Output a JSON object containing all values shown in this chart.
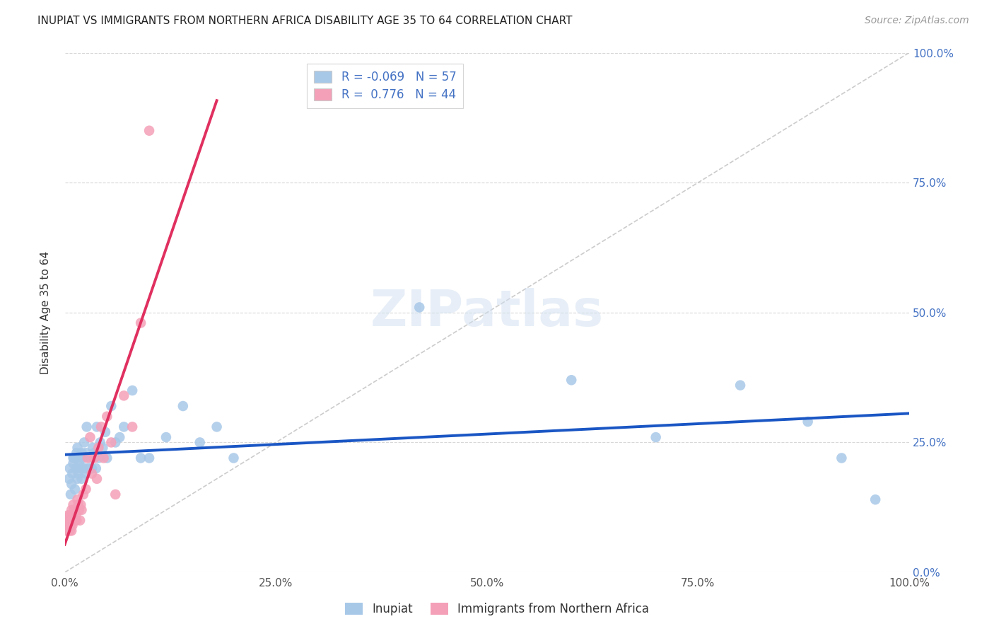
{
  "title": "INUPIAT VS IMMIGRANTS FROM NORTHERN AFRICA DISABILITY AGE 35 TO 64 CORRELATION CHART",
  "source": "Source: ZipAtlas.com",
  "ylabel": "Disability Age 35 to 64",
  "xlim": [
    0,
    1.0
  ],
  "ylim": [
    0,
    1.0
  ],
  "xticks": [
    0.0,
    0.25,
    0.5,
    0.75,
    1.0
  ],
  "yticks": [
    0.0,
    0.25,
    0.5,
    0.75,
    1.0
  ],
  "inupiat_color": "#a8c8e8",
  "immigrant_color": "#f4a0b8",
  "inupiat_R": -0.069,
  "inupiat_N": 57,
  "immigrant_R": 0.776,
  "immigrant_N": 44,
  "trend_blue": "#1a56c4",
  "trend_pink": "#e03060",
  "legend_label_blue": "Inupiat",
  "legend_label_pink": "Immigrants from Northern Africa",
  "inupiat_x": [
    0.005,
    0.006,
    0.007,
    0.008,
    0.009,
    0.01,
    0.01,
    0.011,
    0.012,
    0.013,
    0.014,
    0.015,
    0.015,
    0.016,
    0.017,
    0.018,
    0.019,
    0.02,
    0.02,
    0.021,
    0.022,
    0.023,
    0.024,
    0.025,
    0.025,
    0.026,
    0.028,
    0.03,
    0.032,
    0.033,
    0.035,
    0.037,
    0.038,
    0.04,
    0.042,
    0.045,
    0.048,
    0.05,
    0.055,
    0.06,
    0.065,
    0.07,
    0.08,
    0.09,
    0.1,
    0.12,
    0.14,
    0.16,
    0.18,
    0.2,
    0.42,
    0.6,
    0.7,
    0.8,
    0.88,
    0.92,
    0.96
  ],
  "inupiat_y": [
    0.18,
    0.2,
    0.15,
    0.17,
    0.19,
    0.21,
    0.22,
    0.22,
    0.16,
    0.2,
    0.23,
    0.24,
    0.18,
    0.19,
    0.21,
    0.2,
    0.22,
    0.18,
    0.23,
    0.2,
    0.22,
    0.25,
    0.2,
    0.19,
    0.23,
    0.28,
    0.2,
    0.22,
    0.2,
    0.24,
    0.23,
    0.2,
    0.28,
    0.22,
    0.25,
    0.24,
    0.27,
    0.22,
    0.32,
    0.25,
    0.26,
    0.28,
    0.35,
    0.22,
    0.22,
    0.26,
    0.32,
    0.25,
    0.28,
    0.22,
    0.51,
    0.37,
    0.26,
    0.36,
    0.29,
    0.22,
    0.14
  ],
  "immigrant_x": [
    0.002,
    0.003,
    0.003,
    0.004,
    0.004,
    0.005,
    0.005,
    0.006,
    0.006,
    0.007,
    0.007,
    0.008,
    0.008,
    0.009,
    0.009,
    0.01,
    0.01,
    0.011,
    0.012,
    0.013,
    0.014,
    0.015,
    0.016,
    0.017,
    0.018,
    0.019,
    0.02,
    0.022,
    0.025,
    0.027,
    0.03,
    0.032,
    0.035,
    0.038,
    0.04,
    0.043,
    0.046,
    0.05,
    0.055,
    0.06,
    0.07,
    0.08,
    0.09,
    0.1
  ],
  "immigrant_y": [
    0.08,
    0.09,
    0.1,
    0.08,
    0.11,
    0.09,
    0.1,
    0.08,
    0.11,
    0.09,
    0.1,
    0.08,
    0.12,
    0.09,
    0.11,
    0.1,
    0.13,
    0.12,
    0.1,
    0.11,
    0.1,
    0.14,
    0.13,
    0.12,
    0.1,
    0.13,
    0.12,
    0.15,
    0.16,
    0.22,
    0.26,
    0.19,
    0.22,
    0.18,
    0.24,
    0.28,
    0.22,
    0.3,
    0.25,
    0.15,
    0.34,
    0.28,
    0.48,
    0.85
  ],
  "background_color": "#ffffff",
  "grid_color": "#d8d8d8",
  "right_axis_color": "#4472c4",
  "title_fontsize": 11,
  "axis_fontsize": 11,
  "legend_fontsize": 12
}
